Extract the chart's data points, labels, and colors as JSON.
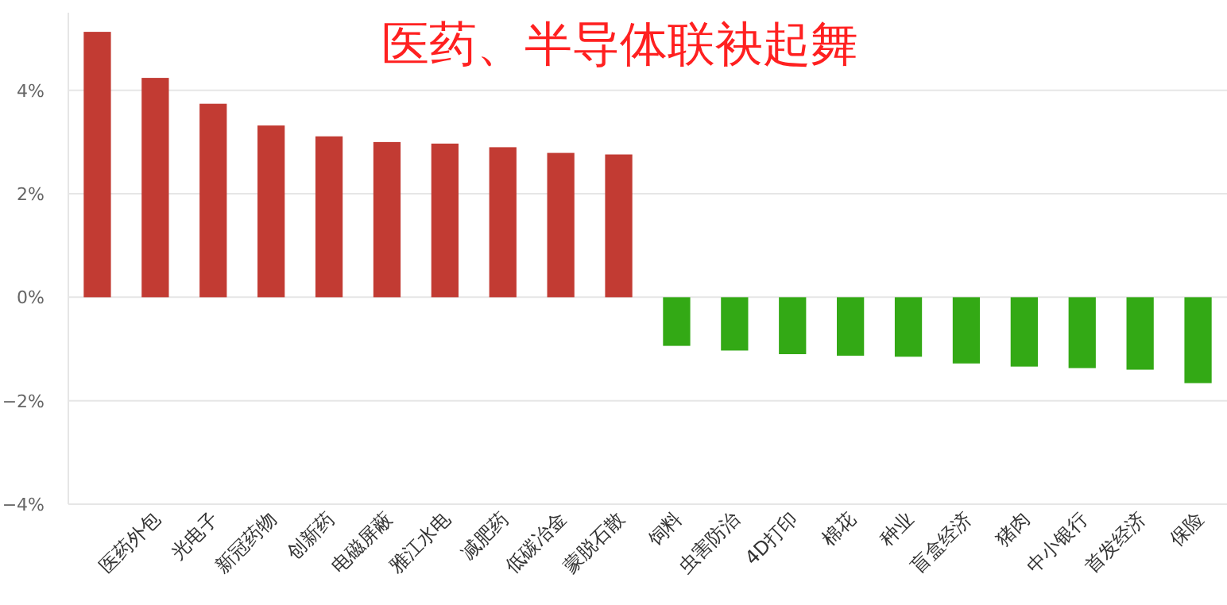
{
  "chart_data": {
    "type": "bar",
    "title": "医药、半导体联袂起舞",
    "categories": [
      null,
      "医药外包",
      "光电子",
      "新冠药物",
      "创新药",
      "电磁屏蔽",
      "雅江水电",
      "减肥药",
      "低碳冶金",
      "蒙脱石散",
      "饲料",
      "虫害防治",
      "4D打印",
      "棉花",
      "种业",
      "盲盒经济",
      "猪肉",
      "中小银行",
      "首发经济",
      "保险"
    ],
    "values": [
      5.13,
      4.24,
      3.74,
      3.32,
      3.11,
      3.0,
      2.97,
      2.9,
      2.79,
      2.76,
      -0.94,
      -1.03,
      -1.1,
      -1.13,
      -1.15,
      -1.28,
      -1.34,
      -1.37,
      -1.4,
      -1.66
    ],
    "colors": [
      "#c23b33",
      "#c23b33",
      "#c23b33",
      "#c23b33",
      "#c23b33",
      "#c23b33",
      "#c23b33",
      "#c23b33",
      "#c23b33",
      "#c23b33",
      "#33a915",
      "#33a915",
      "#33a915",
      "#33a915",
      "#33a915",
      "#33a915",
      "#33a915",
      "#33a915",
      "#33a915",
      "#33a915"
    ],
    "ylim": [
      -4,
      5.5
    ],
    "yticks": [
      {
        "value": -4,
        "label": "−4%"
      },
      {
        "value": -2,
        "label": "−2%"
      },
      {
        "value": 0,
        "label": "0%"
      },
      {
        "value": 2,
        "label": "2%"
      },
      {
        "value": 4,
        "label": "4%"
      }
    ],
    "grid": "y"
  }
}
